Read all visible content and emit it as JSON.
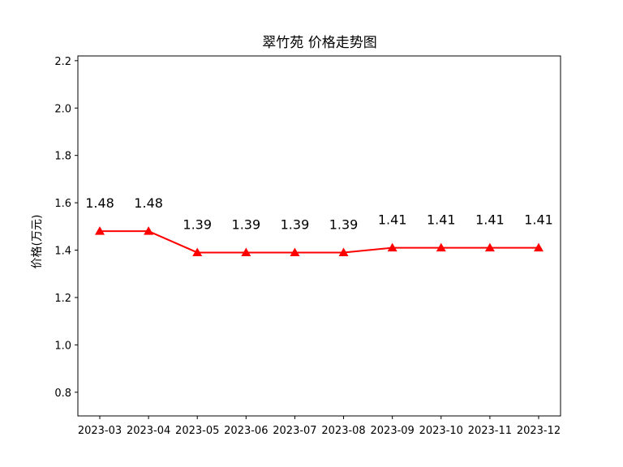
{
  "chart_data": {
    "type": "line",
    "title": "翠竹苑 价格走势图",
    "xlabel": "",
    "ylabel": "价格(万元)",
    "x": [
      "2023-03",
      "2023-04",
      "2023-05",
      "2023-06",
      "2023-07",
      "2023-08",
      "2023-09",
      "2023-10",
      "2023-11",
      "2023-12"
    ],
    "series": [
      {
        "values": [
          1.48,
          1.48,
          1.39,
          1.39,
          1.39,
          1.39,
          1.41,
          1.41,
          1.41,
          1.41
        ]
      }
    ],
    "data_labels": [
      "1.48",
      "1.48",
      "1.39",
      "1.39",
      "1.39",
      "1.39",
      "1.41",
      "1.41",
      "1.41",
      "1.41"
    ],
    "ylim": [
      0.7,
      2.22
    ],
    "yticks": [
      0.8,
      1.0,
      1.2,
      1.4,
      1.6,
      1.8,
      2.0,
      2.2
    ],
    "ytick_labels": [
      "0.8",
      "1.0",
      "1.2",
      "1.4",
      "1.6",
      "1.8",
      "2.0",
      "2.2"
    ],
    "grid": false,
    "line_color": "#ff0000",
    "marker": "triangle-up"
  }
}
